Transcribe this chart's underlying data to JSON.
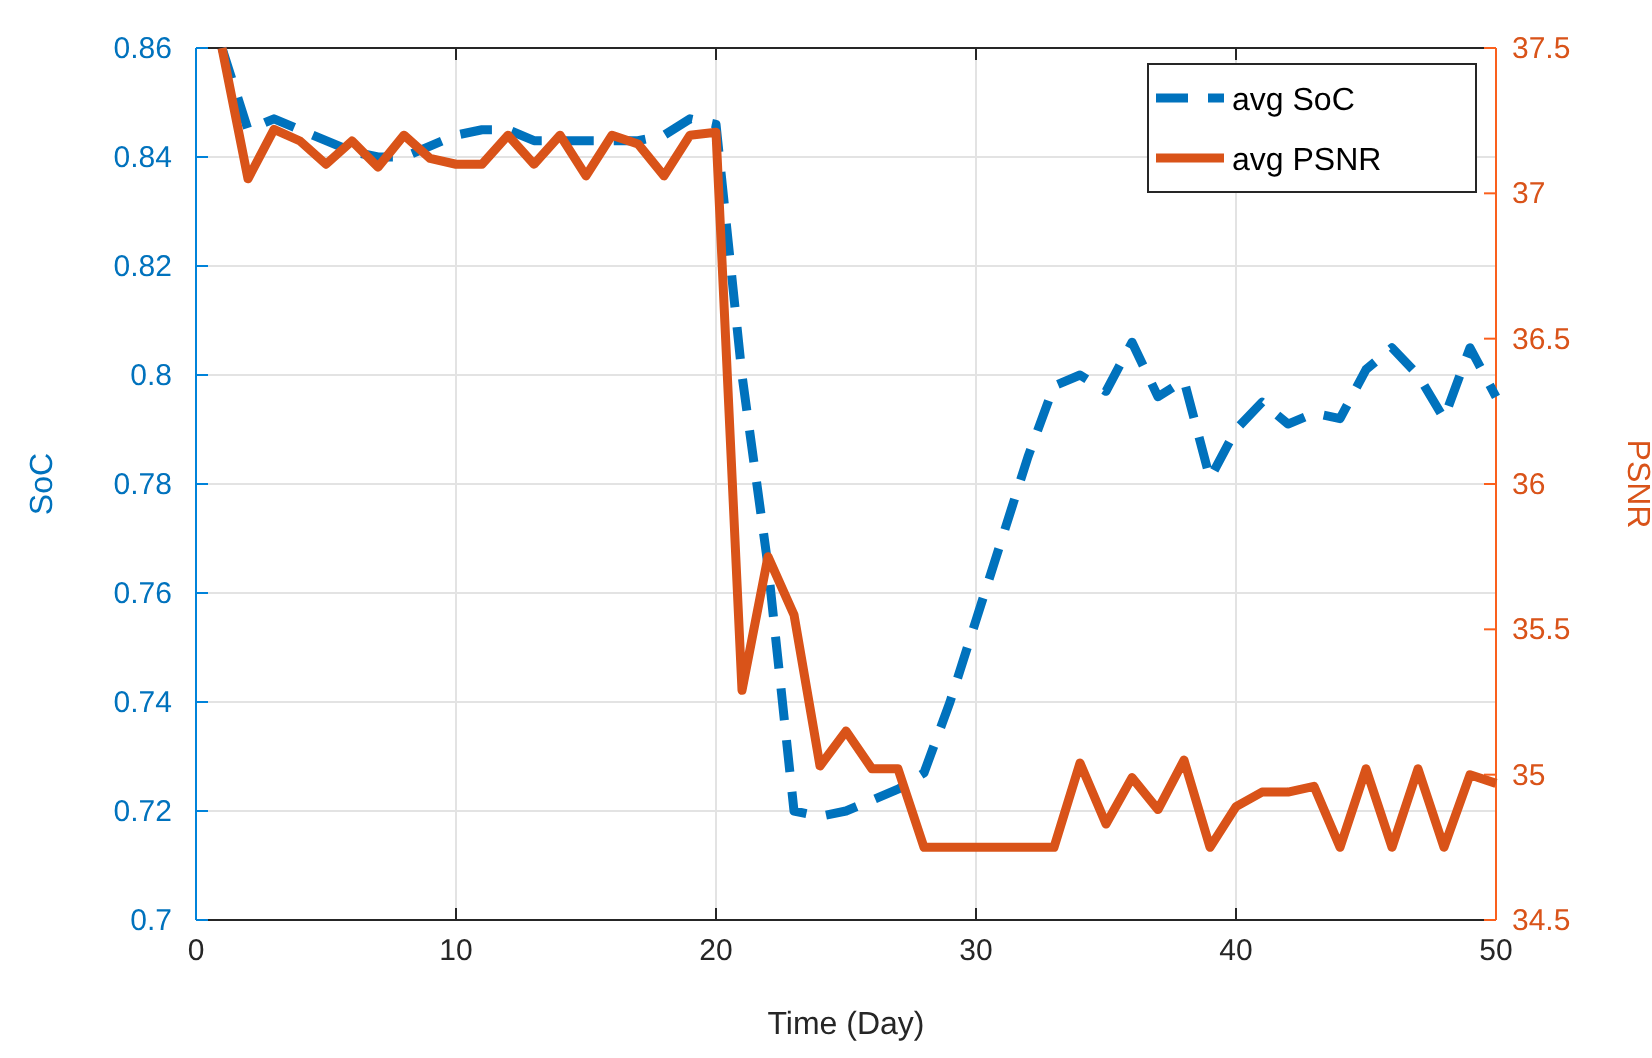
{
  "chart_data": {
    "type": "line",
    "xlabel": "Time (Day)",
    "ylabel": "SoC",
    "y2label": "PSNR",
    "x": [
      1,
      2,
      3,
      4,
      5,
      6,
      7,
      8,
      9,
      10,
      11,
      12,
      13,
      14,
      15,
      16,
      17,
      18,
      19,
      20,
      21,
      22,
      23,
      24,
      25,
      26,
      27,
      28,
      29,
      30,
      31,
      32,
      33,
      34,
      35,
      36,
      37,
      38,
      39,
      40,
      41,
      42,
      43,
      44,
      45,
      46,
      47,
      48,
      49,
      50
    ],
    "xlim": [
      0,
      50
    ],
    "xticks": [
      0,
      10,
      20,
      30,
      40,
      50
    ],
    "ylim": [
      0.7,
      0.86
    ],
    "yticks": [
      0.7,
      0.72,
      0.74,
      0.76,
      0.78,
      0.8,
      0.82,
      0.84,
      0.86
    ],
    "y2lim": [
      34.5,
      37.5
    ],
    "y2ticks": [
      34.5,
      35,
      35.5,
      36,
      36.5,
      37,
      37.5
    ],
    "grid": true,
    "legend": "top right",
    "series": [
      {
        "name": "avg SoC",
        "color": "#0072bd",
        "line_style": "dashed",
        "values": [
          0.86,
          0.845,
          0.847,
          0.845,
          0.843,
          0.841,
          0.84,
          0.84,
          0.842,
          0.844,
          0.845,
          0.845,
          0.843,
          0.843,
          0.843,
          0.843,
          0.843,
          0.844,
          0.847,
          0.846,
          0.8,
          0.765,
          0.72,
          0.719,
          0.72,
          0.722,
          0.724,
          0.727,
          0.74,
          0.755,
          0.77,
          0.785,
          0.798,
          0.8,
          0.797,
          0.806,
          0.796,
          0.799,
          0.781,
          0.79,
          0.795,
          0.791,
          0.793,
          0.792,
          0.801,
          0.805,
          0.8,
          0.792,
          0.805,
          0.796
        ]
      },
      {
        "name": "avg PSNR",
        "color": "#d95319",
        "line_style": "solid",
        "axis": "y2",
        "values": [
          37.5,
          37.05,
          37.22,
          37.18,
          37.1,
          37.18,
          37.09,
          37.2,
          37.12,
          37.1,
          37.1,
          37.2,
          37.1,
          37.2,
          37.06,
          37.2,
          37.17,
          37.06,
          37.2,
          37.21,
          35.29,
          35.75,
          35.55,
          35.03,
          35.15,
          35.02,
          35.02,
          34.75,
          34.75,
          34.75,
          34.75,
          34.75,
          34.75,
          35.04,
          34.83,
          34.99,
          34.88,
          35.05,
          34.75,
          34.89,
          34.94,
          34.94,
          34.96,
          34.75,
          35.02,
          34.75,
          35.02,
          34.75,
          35,
          34.97
        ]
      }
    ]
  }
}
